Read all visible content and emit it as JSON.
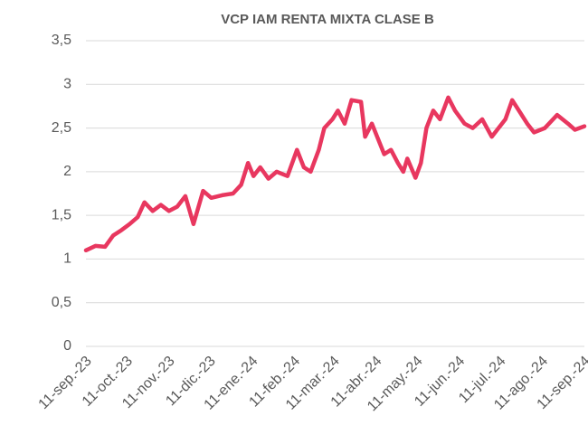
{
  "chart_data": {
    "type": "line",
    "title": "VCP IAM RENTA MIXTA CLASE B",
    "x": [
      "2023-09-11",
      "2023-09-18",
      "2023-09-25",
      "2023-10-01",
      "2023-10-07",
      "2023-10-13",
      "2023-10-19",
      "2023-10-24",
      "2023-10-30",
      "2023-11-05",
      "2023-11-11",
      "2023-11-17",
      "2023-11-23",
      "2023-11-29",
      "2023-12-06",
      "2023-12-12",
      "2023-12-20",
      "2023-12-28",
      "2024-01-03",
      "2024-01-08",
      "2024-01-12",
      "2024-01-17",
      "2024-01-23",
      "2024-01-29",
      "2024-02-06",
      "2024-02-13",
      "2024-02-18",
      "2024-02-23",
      "2024-02-29",
      "2024-03-04",
      "2024-03-10",
      "2024-03-14",
      "2024-03-19",
      "2024-03-24",
      "2024-03-31",
      "2024-04-03",
      "2024-04-08",
      "2024-04-17",
      "2024-04-22",
      "2024-04-27",
      "2024-05-01",
      "2024-05-04",
      "2024-05-10",
      "2024-05-14",
      "2024-05-18",
      "2024-05-23",
      "2024-05-28",
      "2024-06-03",
      "2024-06-08",
      "2024-06-15",
      "2024-06-21",
      "2024-06-28",
      "2024-07-05",
      "2024-07-15",
      "2024-07-20",
      "2024-07-27",
      "2024-07-31",
      "2024-08-05",
      "2024-08-13",
      "2024-08-22",
      "2024-08-30",
      "2024-09-04",
      "2024-09-11"
    ],
    "values": [
      1.1,
      1.15,
      1.14,
      1.27,
      1.33,
      1.4,
      1.48,
      1.65,
      1.55,
      1.62,
      1.55,
      1.6,
      1.72,
      1.4,
      1.78,
      1.7,
      1.73,
      1.75,
      1.85,
      2.1,
      1.95,
      2.05,
      1.92,
      2.0,
      1.95,
      2.25,
      2.05,
      2.0,
      2.25,
      2.5,
      2.6,
      2.7,
      2.55,
      2.82,
      2.8,
      2.4,
      2.55,
      2.2,
      2.25,
      2.1,
      2.0,
      2.15,
      1.93,
      2.1,
      2.5,
      2.7,
      2.6,
      2.85,
      2.7,
      2.55,
      2.5,
      2.6,
      2.4,
      2.6,
      2.82,
      2.65,
      2.55,
      2.45,
      2.5,
      2.65,
      2.55,
      2.48,
      2.52
    ],
    "color": "#e8375f",
    "xlim": [
      "2023-09-11",
      "2024-09-11"
    ],
    "xticks": [
      {
        "value": "2023-09-11",
        "label": "11-sep.-23"
      },
      {
        "value": "2023-10-11",
        "label": "11-oct.-23"
      },
      {
        "value": "2023-11-11",
        "label": "11-nov.-23"
      },
      {
        "value": "2023-12-11",
        "label": "11-dic.-23"
      },
      {
        "value": "2024-01-11",
        "label": "11-ene.-24"
      },
      {
        "value": "2024-02-11",
        "label": "11-feb.-24"
      },
      {
        "value": "2024-03-11",
        "label": "11-mar.-24"
      },
      {
        "value": "2024-04-11",
        "label": "11-abr.-24"
      },
      {
        "value": "2024-05-11",
        "label": "11-may.-24"
      },
      {
        "value": "2024-06-11",
        "label": "11-jun.-24"
      },
      {
        "value": "2024-07-11",
        "label": "11-jul.-24"
      },
      {
        "value": "2024-08-11",
        "label": "11-ago.-24"
      },
      {
        "value": "2024-09-11",
        "label": "11-sep.-24"
      }
    ],
    "ylim": [
      0,
      3.5
    ],
    "yticks": [
      0,
      {
        "value": 0.5,
        "label": "0,5"
      },
      1,
      {
        "value": 1.5,
        "label": "1,5"
      },
      2,
      {
        "value": 2.5,
        "label": "2,5"
      },
      3,
      {
        "value": 3.5,
        "label": "3,5"
      }
    ],
    "grid": true
  }
}
